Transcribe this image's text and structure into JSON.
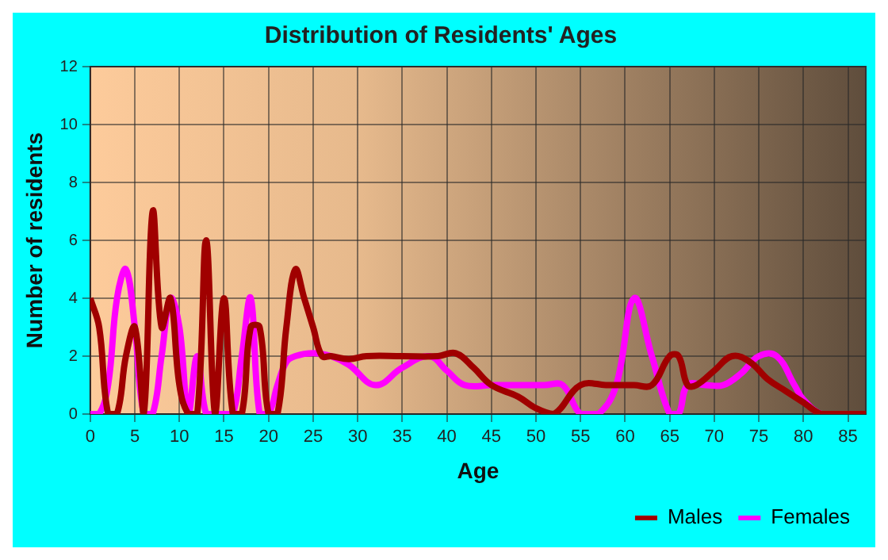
{
  "chart_data": {
    "type": "line",
    "title": "Distribution of Residents' Ages",
    "xlabel": "Age",
    "ylabel": "Number of residents",
    "xlim": [
      0,
      87
    ],
    "xticks": [
      0,
      5,
      10,
      15,
      20,
      25,
      30,
      35,
      40,
      45,
      50,
      55,
      60,
      65,
      70,
      75,
      80,
      85
    ],
    "ylim": [
      0,
      12
    ],
    "yticks": [
      0,
      2,
      4,
      6,
      8,
      10,
      12
    ],
    "grid": true,
    "legend": "bottom right",
    "marker": "none",
    "line_style": "solid",
    "series": [
      {
        "name": "Males",
        "color": "#a00000",
        "x": [
          0,
          1,
          2,
          3,
          4,
          5,
          6,
          7,
          8,
          9,
          10,
          11,
          12,
          13,
          14,
          15,
          16,
          17,
          18,
          19,
          20,
          21,
          22,
          23,
          24,
          25,
          26,
          27,
          29,
          31,
          35,
          39,
          41,
          43,
          45,
          48,
          50,
          52,
          55,
          58,
          61,
          63,
          65,
          66,
          67,
          68,
          70,
          72,
          74,
          76,
          78,
          80,
          82,
          84,
          87
        ],
        "values": [
          4,
          3,
          0,
          0,
          2,
          3,
          0,
          7,
          3,
          4,
          1,
          0,
          0,
          6,
          0,
          4,
          0,
          0,
          3,
          3,
          0,
          0,
          3,
          5,
          4,
          3,
          2,
          2,
          1.9,
          2,
          2,
          2,
          2.1,
          1.6,
          1,
          0.6,
          0.2,
          0,
          1,
          1,
          1,
          1,
          2,
          2,
          1,
          1,
          1.5,
          2,
          1.8,
          1.2,
          0.8,
          0.4,
          0,
          0,
          0
        ]
      },
      {
        "name": "Females",
        "color": "#ff00ff",
        "x": [
          0,
          1,
          2,
          3,
          4,
          5,
          6,
          7,
          8,
          9,
          10,
          11,
          12,
          13,
          14,
          15,
          16,
          17,
          18,
          19,
          20,
          21,
          22,
          23,
          25,
          27,
          29,
          32,
          35,
          38,
          40,
          42,
          45,
          48,
          51,
          53,
          55,
          57,
          59,
          61,
          63,
          65,
          66,
          67,
          69,
          71,
          73,
          75,
          77,
          79,
          80,
          82,
          84,
          87
        ],
        "values": [
          0,
          0,
          1,
          4,
          5,
          3,
          0,
          0,
          2,
          4,
          3,
          0,
          2,
          0,
          0,
          0,
          0,
          2,
          4,
          0,
          0,
          1,
          1.8,
          2,
          2.1,
          2,
          1.7,
          1,
          1.6,
          2,
          1.5,
          1,
          1,
          1,
          1,
          1,
          0,
          0,
          1,
          4,
          2,
          0,
          0,
          1,
          1,
          1,
          1.4,
          2,
          2,
          1,
          0.5,
          0,
          0,
          0
        ]
      }
    ]
  }
}
